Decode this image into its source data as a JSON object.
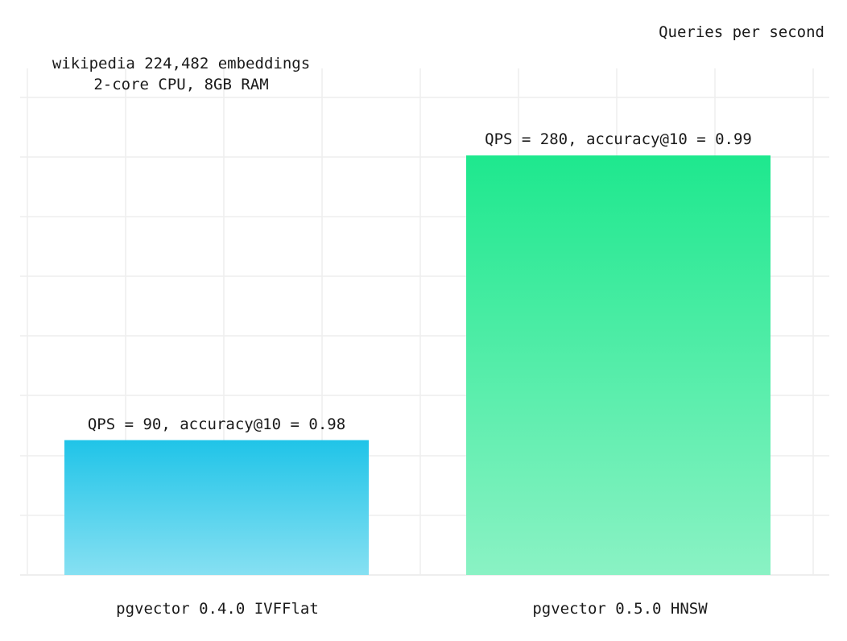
{
  "chart_data": {
    "type": "bar",
    "title": "Queries per second",
    "subtitle": [
      "wikipedia 224,482 embeddings",
      "2-core CPU, 8GB RAM"
    ],
    "categories": [
      "pgvector 0.4.0 IVFFlat",
      "pgvector 0.5.0 HNSW"
    ],
    "values": [
      90,
      280
    ],
    "data_labels": [
      "QPS = 90, accuracy@10 = 0.98",
      "QPS = 280, accuracy@10 = 0.99"
    ],
    "ylim": [
      0,
      280
    ],
    "grid": true,
    "y_tick_labels_shown": false,
    "bar_gradients": [
      {
        "top": "#20c4e8",
        "bottom": "#86e0f2"
      },
      {
        "top": "#1ee88e",
        "bottom": "#8af2c4"
      }
    ],
    "grid_color": "#eeeeee"
  }
}
